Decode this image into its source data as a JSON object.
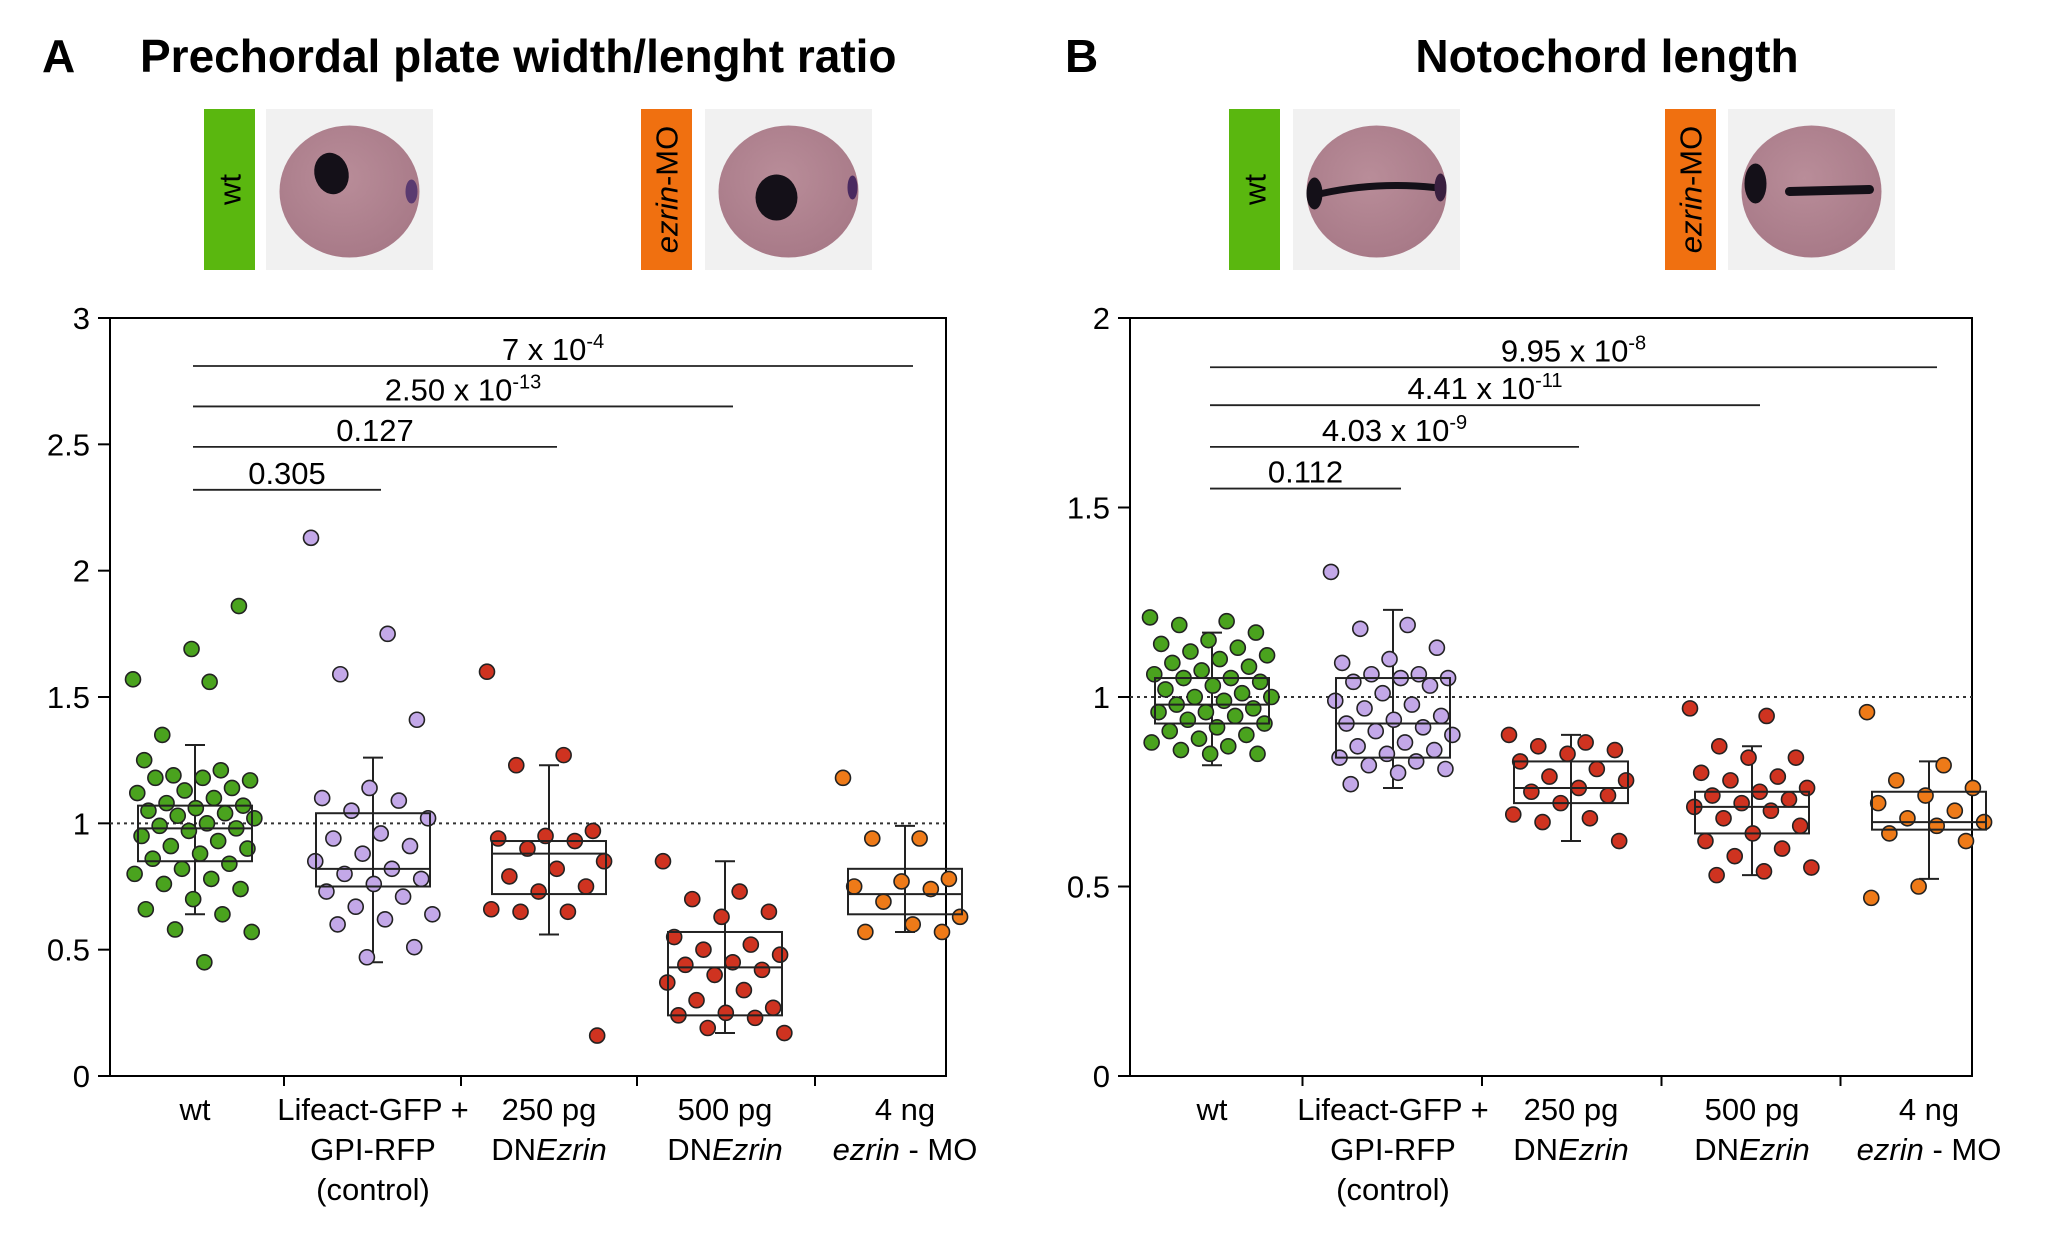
{
  "colors": {
    "wt": "#4aa31e",
    "control": "#c3a8e8",
    "dnezrin": "#cf3320",
    "mo": "#ee7a18",
    "label_wt": "#5ab70f",
    "label_mo": "#f07010",
    "embryo_bg": "#f1f1f1",
    "embryo": "#a87a88",
    "stain": "#141018"
  },
  "panels": [
    {
      "letter": "A",
      "title": "Prechordal plate width/lenght ratio",
      "thumbs": [
        {
          "label": "wt",
          "italic": false,
          "color_key": "label_wt",
          "stain": "ppl"
        },
        {
          "label": "ezrin-MO",
          "italic": true,
          "color_key": "label_mo",
          "stain": "ppl-mo"
        }
      ]
    },
    {
      "letter": "B",
      "title": "Notochord length",
      "thumbs": [
        {
          "label": "wt",
          "italic": false,
          "color_key": "label_wt",
          "stain": "noto"
        },
        {
          "label": "ezrin-MO",
          "italic": true,
          "color_key": "label_mo",
          "stain": "noto-mo"
        }
      ]
    }
  ],
  "chart_data": [
    {
      "type": "scatter",
      "title": "Prechordal plate width/lenght ratio",
      "ylim": [
        0,
        3
      ],
      "yticks": [
        "0",
        "0.5",
        "1",
        "1.5",
        "2",
        "2.5",
        "3"
      ],
      "reference_line": 1,
      "categories": [
        [
          "wt"
        ],
        [
          "Lifeact-GFP +",
          "GPI-RFP",
          "(control)"
        ],
        [
          "250 pg",
          "DN|Ezrin"
        ],
        [
          "500 pg",
          "DN|Ezrin"
        ],
        [
          "4 ng",
          "|ezrin| - MO"
        ]
      ],
      "groups": [
        {
          "color_key": "wt",
          "box": {
            "whisker_low": 0.64,
            "q1": 0.85,
            "median": 0.98,
            "q3": 1.07,
            "whisker_high": 1.31
          },
          "points": [
            1.57,
            1.56,
            1.35,
            1.86,
            1.69,
            1.25,
            1.21,
            1.19,
            1.17,
            1.18,
            1.18,
            1.14,
            1.13,
            1.12,
            1.1,
            1.08,
            1.07,
            1.06,
            1.05,
            1.04,
            1.03,
            1.02,
            1.0,
            0.99,
            0.98,
            0.97,
            0.95,
            0.93,
            0.91,
            0.9,
            0.88,
            0.86,
            0.84,
            0.82,
            0.8,
            0.78,
            0.76,
            0.74,
            0.7,
            0.66,
            0.64,
            0.58,
            0.57,
            0.45
          ]
        },
        {
          "color_key": "control",
          "box": {
            "whisker_low": 0.45,
            "q1": 0.75,
            "median": 0.82,
            "q3": 1.04,
            "whisker_high": 1.26
          },
          "points": [
            2.13,
            1.75,
            1.59,
            1.41,
            1.14,
            1.1,
            1.09,
            1.05,
            1.02,
            0.96,
            0.94,
            0.91,
            0.88,
            0.85,
            0.82,
            0.8,
            0.78,
            0.76,
            0.73,
            0.71,
            0.67,
            0.64,
            0.62,
            0.6,
            0.51,
            0.47
          ]
        },
        {
          "color_key": "dnezrin",
          "box": {
            "whisker_low": 0.56,
            "q1": 0.72,
            "median": 0.88,
            "q3": 0.93,
            "whisker_high": 1.23
          },
          "points": [
            1.6,
            1.27,
            1.23,
            0.97,
            0.95,
            0.94,
            0.93,
            0.9,
            0.85,
            0.82,
            0.79,
            0.75,
            0.73,
            0.66,
            0.65,
            0.65,
            0.16
          ]
        },
        {
          "color_key": "dnezrin",
          "box": {
            "whisker_low": 0.17,
            "q1": 0.24,
            "median": 0.43,
            "q3": 0.57,
            "whisker_high": 0.85
          },
          "points": [
            0.85,
            0.73,
            0.7,
            0.65,
            0.63,
            0.55,
            0.52,
            0.5,
            0.48,
            0.45,
            0.44,
            0.42,
            0.4,
            0.37,
            0.34,
            0.3,
            0.27,
            0.25,
            0.24,
            0.23,
            0.19,
            0.17
          ]
        },
        {
          "color_key": "mo",
          "box": {
            "whisker_low": 0.57,
            "q1": 0.64,
            "median": 0.72,
            "q3": 0.82,
            "whisker_high": 0.99
          },
          "points": [
            1.18,
            0.94,
            0.94,
            0.78,
            0.77,
            0.75,
            0.74,
            0.69,
            0.63,
            0.6,
            0.57,
            0.57
          ]
        }
      ],
      "comparisons": [
        {
          "from": 0,
          "to": 1,
          "y": 2.32,
          "p_base": "0.305",
          "p_exp": ""
        },
        {
          "from": 0,
          "to": 2,
          "y": 2.49,
          "p_base": "0.127",
          "p_exp": ""
        },
        {
          "from": 0,
          "to": 3,
          "y": 2.65,
          "p_base": "2.50 x 10",
          "p_exp": "-13"
        },
        {
          "from": 0,
          "to": 4,
          "y": 2.81,
          "p_base": "7 x 10",
          "p_exp": "-4"
        }
      ]
    },
    {
      "type": "scatter",
      "title": "Notochord length",
      "ylim": [
        0,
        2
      ],
      "yticks": [
        "0",
        "0.5",
        "1",
        "1.5",
        "2"
      ],
      "reference_line": 1,
      "categories": [
        [
          "wt"
        ],
        [
          "Lifeact-GFP +",
          "GPI-RFP",
          "(control)"
        ],
        [
          "250 pg",
          "DN|Ezrin"
        ],
        [
          "500 pg",
          "DN|Ezrin"
        ],
        [
          "4 ng",
          "|ezrin| - MO"
        ]
      ],
      "groups": [
        {
          "color_key": "wt",
          "box": {
            "whisker_low": 0.82,
            "q1": 0.93,
            "median": 0.98,
            "q3": 1.05,
            "whisker_high": 1.17
          },
          "points": [
            1.21,
            1.2,
            1.19,
            1.17,
            1.15,
            1.14,
            1.13,
            1.12,
            1.11,
            1.1,
            1.09,
            1.08,
            1.07,
            1.06,
            1.05,
            1.05,
            1.04,
            1.03,
            1.02,
            1.01,
            1.0,
            1.0,
            0.99,
            0.98,
            0.97,
            0.96,
            0.96,
            0.95,
            0.94,
            0.93,
            0.92,
            0.91,
            0.9,
            0.89,
            0.88,
            0.87,
            0.86,
            0.85,
            0.85
          ]
        },
        {
          "color_key": "control",
          "box": {
            "whisker_low": 0.76,
            "q1": 0.84,
            "median": 0.93,
            "q3": 1.05,
            "whisker_high": 1.23
          },
          "points": [
            1.33,
            1.19,
            1.18,
            1.13,
            1.1,
            1.09,
            1.06,
            1.06,
            1.05,
            1.05,
            1.04,
            1.03,
            1.01,
            0.99,
            0.98,
            0.97,
            0.95,
            0.94,
            0.93,
            0.92,
            0.91,
            0.9,
            0.88,
            0.87,
            0.86,
            0.85,
            0.84,
            0.83,
            0.82,
            0.81,
            0.8,
            0.77
          ]
        },
        {
          "color_key": "dnezrin",
          "box": {
            "whisker_low": 0.62,
            "q1": 0.72,
            "median": 0.76,
            "q3": 0.83,
            "whisker_high": 0.9
          },
          "points": [
            0.9,
            0.88,
            0.87,
            0.86,
            0.85,
            0.83,
            0.81,
            0.79,
            0.78,
            0.76,
            0.75,
            0.74,
            0.72,
            0.69,
            0.68,
            0.67,
            0.62
          ]
        },
        {
          "color_key": "dnezrin",
          "box": {
            "whisker_low": 0.53,
            "q1": 0.64,
            "median": 0.71,
            "q3": 0.75,
            "whisker_high": 0.87
          },
          "points": [
            0.97,
            0.95,
            0.87,
            0.84,
            0.84,
            0.8,
            0.79,
            0.78,
            0.76,
            0.75,
            0.74,
            0.73,
            0.72,
            0.71,
            0.7,
            0.68,
            0.66,
            0.64,
            0.62,
            0.6,
            0.58,
            0.55,
            0.54,
            0.53
          ]
        },
        {
          "color_key": "mo",
          "box": {
            "whisker_low": 0.52,
            "q1": 0.65,
            "median": 0.67,
            "q3": 0.75,
            "whisker_high": 0.83
          },
          "points": [
            0.96,
            0.82,
            0.78,
            0.76,
            0.74,
            0.72,
            0.7,
            0.68,
            0.67,
            0.66,
            0.64,
            0.62,
            0.5,
            0.47
          ]
        }
      ],
      "comparisons": [
        {
          "from": 0,
          "to": 1,
          "y": 1.55,
          "p_base": "0.112",
          "p_exp": ""
        },
        {
          "from": 0,
          "to": 2,
          "y": 1.66,
          "p_base": "4.03 x 10",
          "p_exp": "-9"
        },
        {
          "from": 0,
          "to": 3,
          "y": 1.77,
          "p_base": "4.41 x 10",
          "p_exp": "-11"
        },
        {
          "from": 0,
          "to": 4,
          "y": 1.87,
          "p_base": "9.95 x 10",
          "p_exp": "-8"
        }
      ]
    }
  ]
}
